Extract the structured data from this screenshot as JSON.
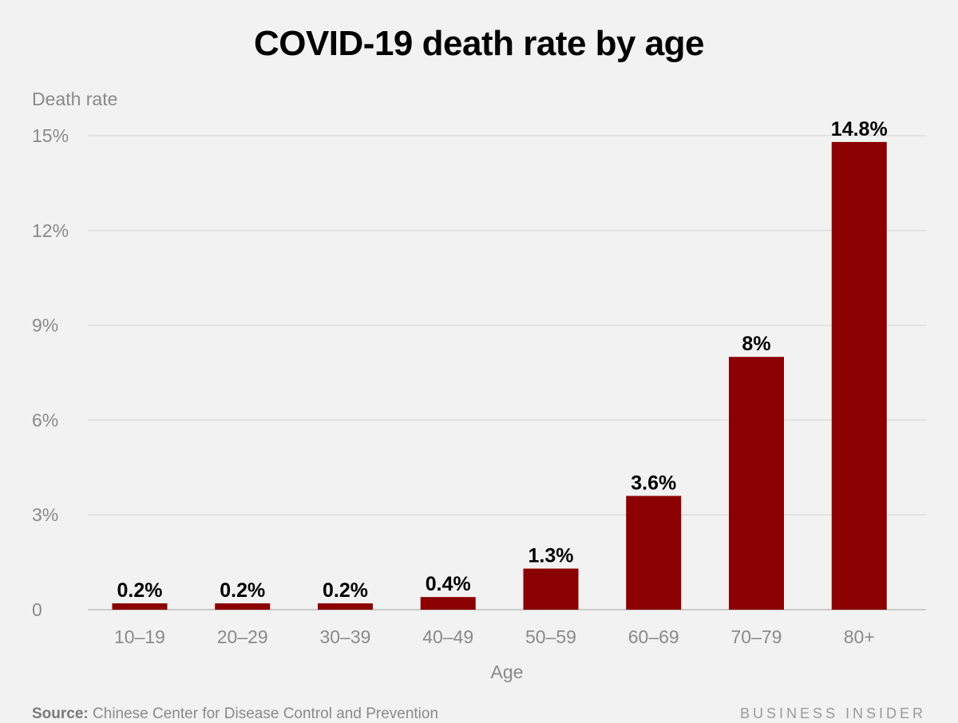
{
  "colors": {
    "bar": "#8b0000",
    "background": "#f2f2f2",
    "text_muted": "#8a8a8a"
  },
  "chart_data": {
    "type": "bar",
    "title": "COVID-19 death rate by age",
    "ylabel": "Death rate",
    "xlabel": "Age",
    "categories": [
      "10–19",
      "20–29",
      "30–39",
      "40–49",
      "50–59",
      "60–69",
      "70–79",
      "80+"
    ],
    "values": [
      0.2,
      0.2,
      0.2,
      0.4,
      1.3,
      3.6,
      8,
      14.8
    ],
    "data_labels": [
      "0.2%",
      "0.2%",
      "0.2%",
      "0.4%",
      "1.3%",
      "3.6%",
      "8%",
      "14.8%"
    ],
    "ylim": [
      0,
      15
    ],
    "yticks": [
      0,
      3,
      6,
      9,
      12,
      15
    ],
    "ytick_labels": [
      "0",
      "3%",
      "6%",
      "9%",
      "12%",
      "15%"
    ],
    "grid": true,
    "legend": "none"
  },
  "footer": {
    "source_label": "Source:",
    "source_text": "Chinese Center for Disease Control and Prevention",
    "brand": "BUSINESS INSIDER"
  }
}
